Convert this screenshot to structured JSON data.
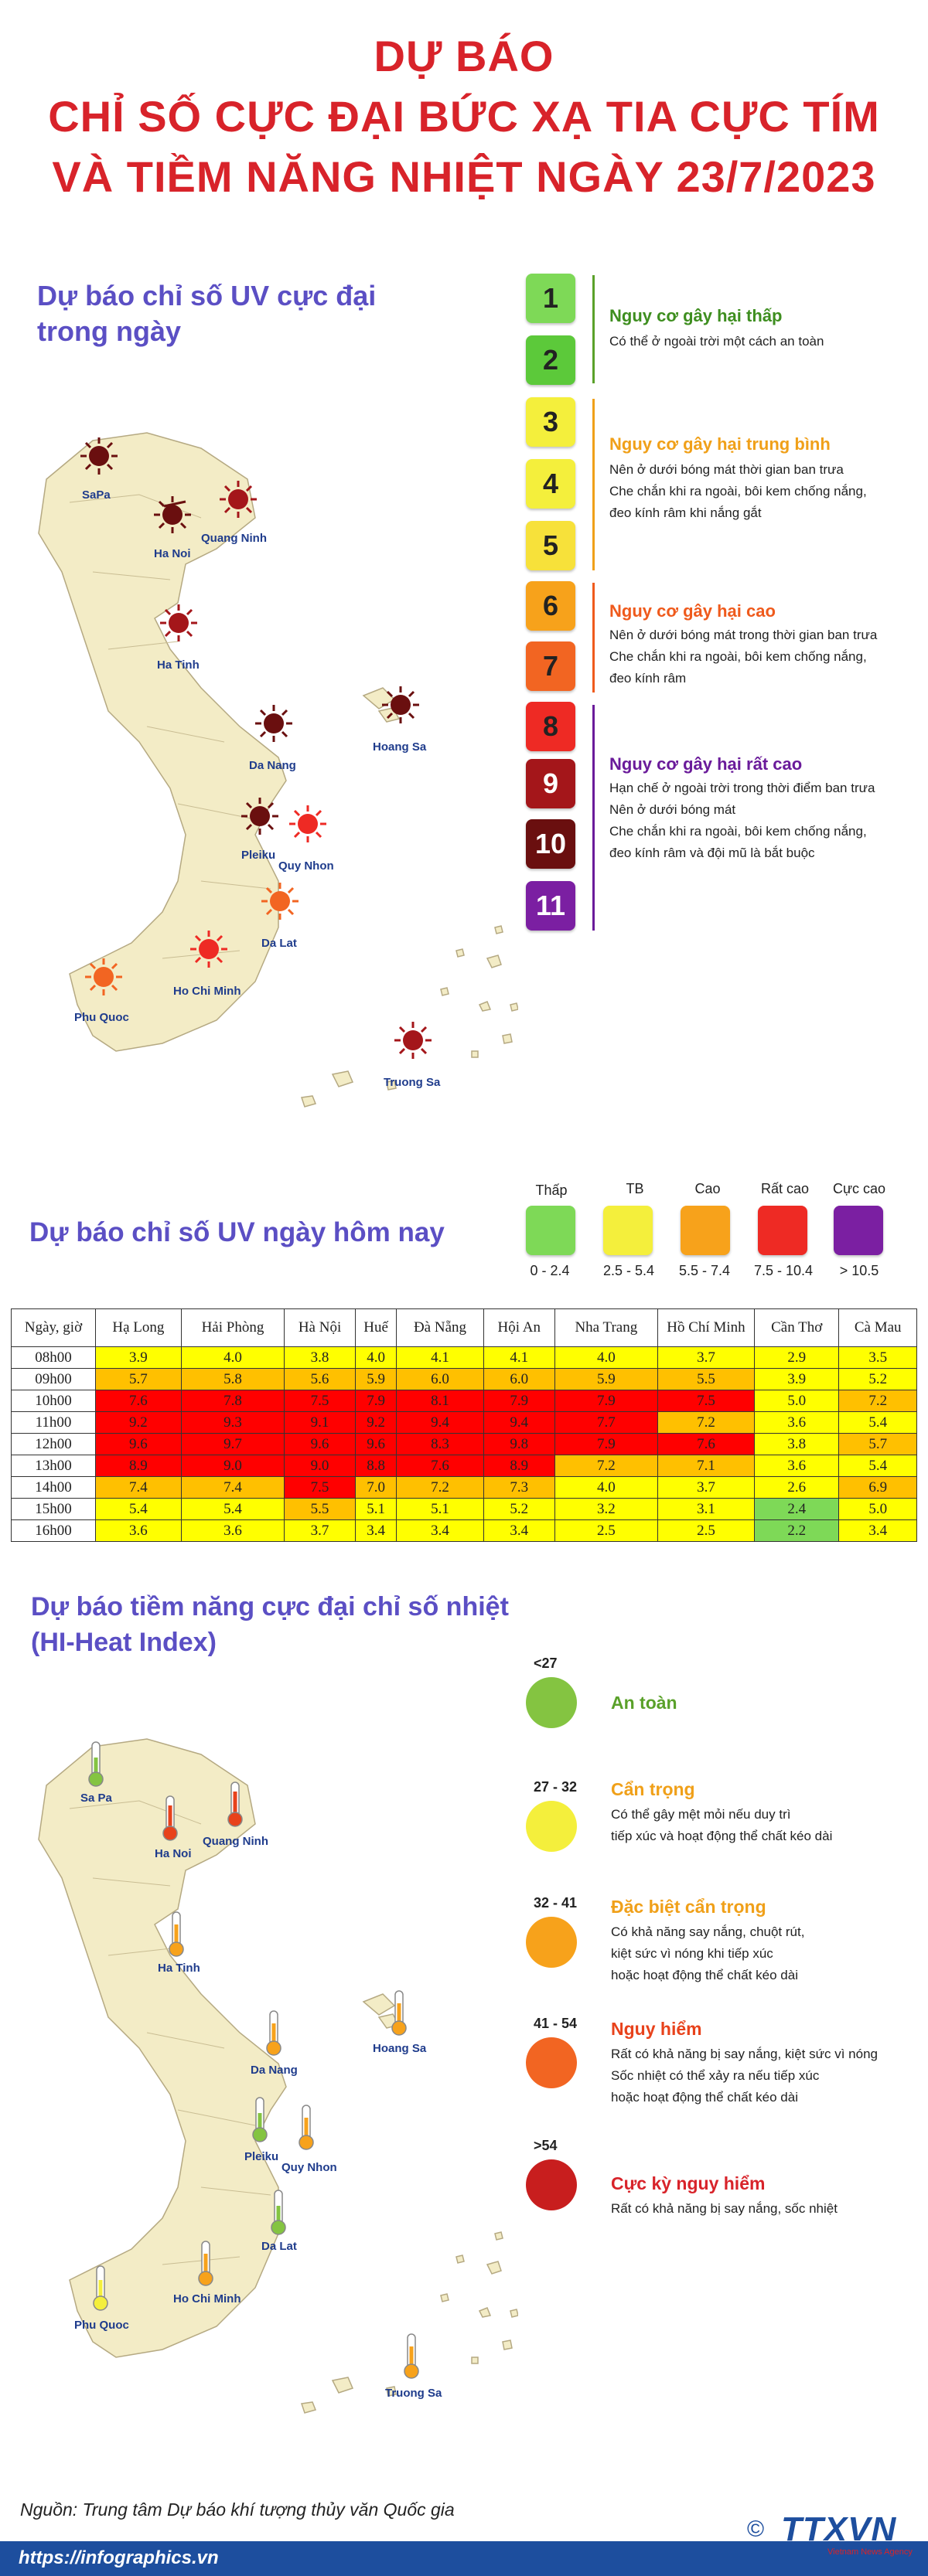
{
  "header": {
    "line1": "DỰ BÁO",
    "line2": "CHỈ SỐ CỰC ĐẠI BỨC XẠ TIA CỰC TÍM",
    "line3": "VÀ TIỀM NĂNG NHIỆT NGÀY 23/7/2023"
  },
  "uv_map": {
    "title_line1": "Dự báo chỉ số UV cực đại",
    "title_line2": "trong ngày",
    "cities": [
      "SaPa",
      "Ha Noi",
      "Quang Ninh",
      "Ha Tinh",
      "Da Nang",
      "Hoang Sa",
      "Pleiku",
      "Quy Nhon",
      "Da Lat",
      "Ho Chi Minh",
      "Phu Quoc",
      "Truong Sa"
    ]
  },
  "uv_scale": {
    "levels": [
      {
        "value": "1",
        "color": "#7ed957"
      },
      {
        "value": "2",
        "color": "#5cc93a"
      },
      {
        "value": "3",
        "color": "#f4ef3c"
      },
      {
        "value": "4",
        "color": "#f4ef3c"
      },
      {
        "value": "5",
        "color": "#f7e13a"
      },
      {
        "value": "6",
        "color": "#f7a21b"
      },
      {
        "value": "7",
        "color": "#f26522"
      },
      {
        "value": "8",
        "color": "#ee2a24"
      },
      {
        "value": "9",
        "color": "#a4161a"
      },
      {
        "value": "10",
        "color": "#6a0f0f"
      },
      {
        "value": "11",
        "color": "#7b1fa2"
      }
    ],
    "groups": [
      {
        "heading": "Nguy cơ gây hại thấp",
        "color": "#3e8e1f",
        "lines": [
          "Có thể ở ngoài trời một cách an toàn"
        ]
      },
      {
        "heading": "Nguy cơ gây hại trung bình",
        "color": "#f0a019",
        "lines": [
          "Nên ở dưới bóng mát thời gian ban trưa",
          "Che chắn khi ra ngoài, bôi kem chống nắng,",
          "đeo kính râm khi nắng gắt"
        ]
      },
      {
        "heading": "Nguy cơ gây hại cao",
        "color": "#ef5a1c",
        "lines": [
          "Nên ở dưới bóng mát trong thời gian ban trưa",
          "Che chắn khi ra ngoài, bôi kem chống nắng,",
          "đeo kính râm"
        ]
      },
      {
        "heading": "Nguy cơ gây hại rất cao",
        "color": "#6a1b9a",
        "lines": [
          "Hạn chế ở ngoài trời trong thời điểm ban trưa",
          "Nên ở dưới bóng mát",
          "Che chắn khi ra ngoài, bôi kem chống nắng,",
          "đeo kính râm và đội mũ là bắt buộc"
        ]
      }
    ]
  },
  "uv_today": {
    "title": "Dự báo chỉ số UV ngày hôm nay",
    "legend": [
      {
        "label": "Thấp",
        "range": "0 - 2.4",
        "color": "#7ed957"
      },
      {
        "label": "TB",
        "range": "2.5 - 5.4",
        "color": "#f4ef3c"
      },
      {
        "label": "Cao",
        "range": "5.5 - 7.4",
        "color": "#f7a21b"
      },
      {
        "label": "Rất cao",
        "range": "7.5 - 10.4",
        "color": "#ee2a24"
      },
      {
        "label": "Cực cao",
        "range": "> 10.5",
        "color": "#7b1fa2"
      }
    ]
  },
  "uv_table": {
    "corner": "Ngày, giờ",
    "cities": [
      "Hạ Long",
      "Hải Phòng",
      "Hà Nội",
      "Huế",
      "Đà Nẵng",
      "Hội An",
      "Nha Trang",
      "Hồ Chí Minh",
      "Cần Thơ",
      "Cà Mau"
    ],
    "rows": [
      {
        "time": "08h00",
        "values": [
          "3.9",
          "4.0",
          "3.8",
          "4.0",
          "4.1",
          "4.1",
          "4.0",
          "3.7",
          "2.9",
          "3.5"
        ]
      },
      {
        "time": "09h00",
        "values": [
          "5.7",
          "5.8",
          "5.6",
          "5.9",
          "6.0",
          "6.0",
          "5.9",
          "5.5",
          "3.9",
          "5.2"
        ]
      },
      {
        "time": "10h00",
        "values": [
          "7.6",
          "7.8",
          "7.5",
          "7.9",
          "8.1",
          "7.9",
          "7.9",
          "7.5",
          "5.0",
          "7.2"
        ]
      },
      {
        "time": "11h00",
        "values": [
          "9.2",
          "9.3",
          "9.1",
          "9.2",
          "9.4",
          "9.4",
          "7.7",
          "7.2",
          "3.6",
          "5.4"
        ]
      },
      {
        "time": "12h00",
        "values": [
          "9.6",
          "9.7",
          "9.6",
          "9.6",
          "8.3",
          "9.8",
          "7.9",
          "7.6",
          "3.8",
          "5.7"
        ]
      },
      {
        "time": "13h00",
        "values": [
          "8.9",
          "9.0",
          "9.0",
          "8.8",
          "7.6",
          "8.9",
          "7.2",
          "7.1",
          "3.6",
          "5.4"
        ]
      },
      {
        "time": "14h00",
        "values": [
          "7.4",
          "7.4",
          "7.5",
          "7.0",
          "7.2",
          "7.3",
          "4.0",
          "3.7",
          "2.6",
          "6.9"
        ]
      },
      {
        "time": "15h00",
        "values": [
          "5.4",
          "5.4",
          "5.5",
          "5.1",
          "5.1",
          "5.2",
          "3.2",
          "3.1",
          "2.4",
          "5.0"
        ]
      },
      {
        "time": "16h00",
        "values": [
          "3.6",
          "3.6",
          "3.7",
          "3.4",
          "3.4",
          "3.4",
          "2.5",
          "2.5",
          "2.2",
          "3.4"
        ]
      }
    ]
  },
  "heat_map": {
    "title_line1": "Dự báo tiềm năng cực đại chỉ số nhiệt",
    "title_line2": "(HI-Heat Index)",
    "cities": [
      "Sa Pa",
      "Ha Noi",
      "Quang Ninh",
      "Ha Tinh",
      "Da Nang",
      "Hoang Sa",
      "Pleiku",
      "Quy Nhon",
      "Da Lat",
      "Ho Chi Minh",
      "Phu Quoc",
      "Truong Sa"
    ]
  },
  "heat_scale": [
    {
      "range": "<27",
      "heading": "An toàn",
      "color": "#84c441",
      "heading_color": "#5aa12a",
      "lines": []
    },
    {
      "range": "27 - 32",
      "heading": "Cẩn trọng",
      "color": "#f4ef3c",
      "heading_color": "#f0a019",
      "lines": [
        "Có thể gây mệt mỏi nếu duy trì",
        "tiếp xúc và hoạt động thể chất kéo dài"
      ]
    },
    {
      "range": "32 - 41",
      "heading": "Đặc biệt cẩn trọng",
      "color": "#f7a21b",
      "heading_color": "#f0a019",
      "lines": [
        "Có khả năng say nắng, chuột rút,",
        "kiệt sức vì nóng khi tiếp xúc",
        "hoặc hoạt động thể chất kéo dài"
      ]
    },
    {
      "range": "41 - 54",
      "heading": "Nguy hiểm",
      "color": "#f26522",
      "heading_color": "#e8421b",
      "lines": [
        "Rất có khả năng bị say nắng, kiệt sức vì nóng",
        "Sốc nhiệt có thể xảy ra nếu tiếp xúc",
        "hoặc hoạt động thể chất kéo dài"
      ]
    },
    {
      "range": ">54",
      "heading": "Cực kỳ nguy hiểm",
      "color": "#c81e1e",
      "heading_color": "#d8232a",
      "lines": [
        "Rất có khả năng bị say nắng, sốc nhiệt"
      ]
    }
  ],
  "footer": {
    "source": "Nguồn: Trung tâm Dự báo khí tượng thủy văn Quốc gia",
    "url": "https://infographics.vn",
    "copyright": "©",
    "brand": "TTXVN",
    "brand_sub": "Vietnam News Agency"
  },
  "colors": {
    "title": "#d8232a",
    "section": "#5b4fc4",
    "footer_bar": "#1d4e9e"
  }
}
